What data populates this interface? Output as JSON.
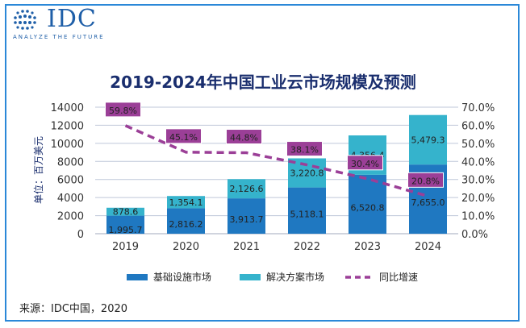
{
  "brand": {
    "name": "IDC",
    "tagline": "ANALYZE THE FUTURE"
  },
  "colors": {
    "series1": "#1f78c1",
    "series2": "#35b3cc",
    "line": "#9b3f97",
    "frame": "#2b88d8",
    "grid": "#bfc7d9"
  },
  "source": "来源：IDC中国，2020",
  "chart_data": {
    "type": "bar",
    "title": "2019-2024年中国工业云市场规模及预测",
    "ylabel": "单位：百万美元",
    "categories": [
      "2019",
      "2020",
      "2021",
      "2022",
      "2023",
      "2024"
    ],
    "ylim": [
      0,
      14000
    ],
    "y_ticks": [
      "0",
      "2000",
      "4000",
      "6000",
      "8000",
      "10000",
      "12000",
      "14000"
    ],
    "y2lim": [
      0,
      70
    ],
    "y2_ticks": [
      "0.0%",
      "10.0%",
      "20.0%",
      "30.0%",
      "40.0%",
      "50.0%",
      "60.0%",
      "70.0%"
    ],
    "grid": true,
    "legend_position": "bottom",
    "series": [
      {
        "name": "基础设施市场",
        "type": "bar",
        "stack": "total",
        "values": [
          1995.7,
          2816.2,
          3913.7,
          5118.1,
          6520.8,
          7655.0
        ],
        "labels": [
          "1,995.7",
          "2,816.2",
          "3,913.7",
          "5,118.1",
          "6,520.8",
          "7,655.0"
        ]
      },
      {
        "name": "解决方案市场",
        "type": "bar",
        "stack": "total",
        "values": [
          878.6,
          1354.1,
          2126.6,
          3220.8,
          4356.4,
          5479.3
        ],
        "labels": [
          "878.6",
          "1,354.1",
          "2,126.6",
          "3,220.8",
          "4,356.4",
          "5,479.3"
        ]
      },
      {
        "name": "同比增速",
        "type": "line",
        "axis": "right",
        "values": [
          59.8,
          45.1,
          44.8,
          38.1,
          30.4,
          20.8
        ],
        "labels": [
          "59.8%",
          "45.1%",
          "44.8%",
          "38.1%",
          "30.4%",
          "20.8%"
        ]
      }
    ]
  }
}
